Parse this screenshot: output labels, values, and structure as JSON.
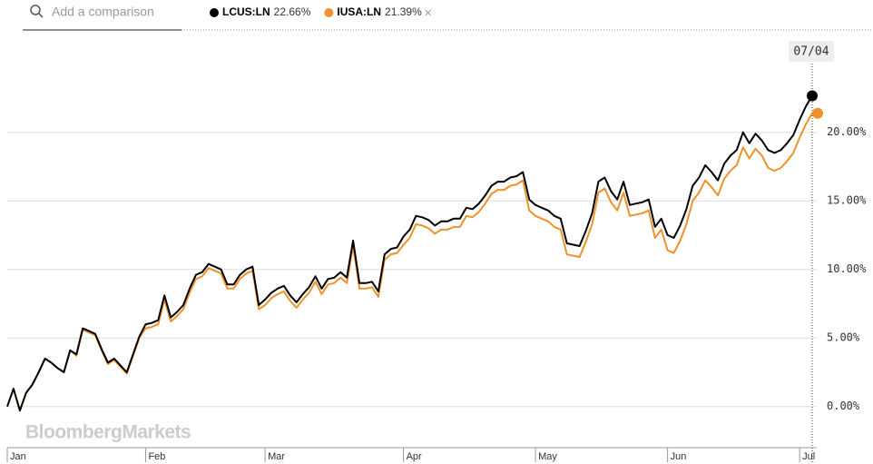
{
  "search_placeholder": "Add a comparison",
  "chart_data": {
    "type": "line",
    "watermark": "BloombergMarkets",
    "crosshair_label": "07/04",
    "categories": [
      "Jan",
      null,
      null,
      null,
      null,
      null,
      null,
      null,
      null,
      null,
      null,
      null,
      null,
      null,
      null,
      null,
      null,
      null,
      null,
      null,
      null,
      null,
      "Feb",
      null,
      null,
      null,
      null,
      null,
      null,
      null,
      null,
      null,
      null,
      null,
      null,
      null,
      null,
      null,
      null,
      null,
      null,
      "Mar",
      null,
      null,
      null,
      null,
      null,
      null,
      null,
      null,
      null,
      null,
      null,
      null,
      null,
      null,
      null,
      null,
      null,
      null,
      null,
      null,
      null,
      "Apr",
      null,
      null,
      null,
      null,
      null,
      null,
      null,
      null,
      null,
      null,
      null,
      null,
      null,
      null,
      null,
      null,
      null,
      null,
      null,
      null,
      "May",
      null,
      null,
      null,
      null,
      null,
      null,
      null,
      null,
      null,
      null,
      null,
      null,
      null,
      null,
      null,
      null,
      null,
      null,
      null,
      null,
      "Jun",
      null,
      null,
      null,
      null,
      null,
      null,
      null,
      null,
      null,
      null,
      null,
      null,
      null,
      null,
      null,
      null,
      null,
      null,
      null,
      null,
      "Jul",
      null,
      null
    ],
    "series": [
      {
        "name": "LCUS:LN",
        "color": "#000000",
        "last_label": "22.66%",
        "values": [
          0,
          1.3,
          -0.3,
          1.0,
          1.6,
          2.5,
          3.5,
          3.2,
          2.8,
          2.5,
          4.1,
          3.8,
          5.7,
          5.5,
          5.3,
          4.2,
          3.2,
          3.5,
          3.0,
          2.5,
          3.8,
          5.1,
          6.0,
          6.1,
          6.3,
          8.1,
          6.5,
          6.9,
          7.4,
          8.6,
          9.6,
          9.8,
          10.4,
          10.2,
          10.0,
          8.9,
          8.9,
          9.6,
          10.0,
          10.2,
          7.4,
          7.8,
          8.3,
          8.6,
          8.8,
          8.1,
          7.6,
          8.2,
          8.7,
          9.5,
          8.6,
          9.3,
          9.4,
          9.8,
          9.4,
          12.1,
          9.0,
          9.0,
          9.1,
          8.4,
          11.1,
          11.5,
          11.6,
          12.4,
          12.9,
          13.9,
          13.8,
          13.6,
          13.2,
          13.5,
          13.5,
          13.7,
          13.7,
          14.5,
          14.4,
          14.8,
          15.4,
          16.1,
          16.4,
          16.4,
          16.7,
          16.8,
          17.1,
          15.1,
          14.7,
          14.5,
          14.3,
          13.9,
          13.7,
          11.9,
          11.8,
          11.7,
          12.8,
          14.1,
          16.4,
          16.7,
          15.7,
          15.1,
          16.4,
          14.7,
          14.8,
          14.9,
          15.1,
          13.1,
          13.7,
          12.5,
          12.3,
          13.2,
          14.4,
          16.1,
          16.7,
          17.6,
          17.1,
          16.5,
          17.7,
          18.3,
          18.7,
          20.0,
          19.2,
          19.9,
          19.4,
          18.7,
          18.5,
          18.7,
          19.2,
          19.8,
          20.9,
          21.9,
          22.66
        ]
      },
      {
        "name": "IUSA:LN",
        "color": "#f0922b",
        "last_label": "21.39%",
        "values": [
          0,
          1.3,
          -0.3,
          1.0,
          1.6,
          2.5,
          3.5,
          3.2,
          2.8,
          2.5,
          4.1,
          3.7,
          5.6,
          5.4,
          5.2,
          4.1,
          3.1,
          3.4,
          2.9,
          2.4,
          3.7,
          5.0,
          5.7,
          5.8,
          6.0,
          7.8,
          6.2,
          6.6,
          7.1,
          8.3,
          9.3,
          9.5,
          10.1,
          9.9,
          9.7,
          8.6,
          8.6,
          9.3,
          9.7,
          9.9,
          7.1,
          7.4,
          7.9,
          8.2,
          8.4,
          7.7,
          7.2,
          7.8,
          8.3,
          9.1,
          8.2,
          8.9,
          9.0,
          9.4,
          9.0,
          11.7,
          8.6,
          8.6,
          8.7,
          8.0,
          10.7,
          11.1,
          11.2,
          11.8,
          12.3,
          13.3,
          13.2,
          13.0,
          12.6,
          12.9,
          12.9,
          13.1,
          13.1,
          13.9,
          13.8,
          14.2,
          14.8,
          15.5,
          15.8,
          15.8,
          16.1,
          16.2,
          16.5,
          14.3,
          13.9,
          13.7,
          13.5,
          13.1,
          12.9,
          11.1,
          11.0,
          10.9,
          12.0,
          13.3,
          15.6,
          15.9,
          14.9,
          14.3,
          15.6,
          13.9,
          14.0,
          14.1,
          14.3,
          12.3,
          12.9,
          11.4,
          11.2,
          12.1,
          13.3,
          15.0,
          15.6,
          16.5,
          16.0,
          15.4,
          16.6,
          17.2,
          17.6,
          18.9,
          18.1,
          18.8,
          18.3,
          17.4,
          17.2,
          17.4,
          17.9,
          18.5,
          19.6,
          20.6,
          21.39
        ]
      }
    ],
    "ylim": [
      -3,
      27
    ],
    "yticks": [
      {
        "value": 0,
        "label": "0.00%"
      },
      {
        "value": 5,
        "label": "5.00%"
      },
      {
        "value": 10,
        "label": "10.00%"
      },
      {
        "value": 15,
        "label": "15.00%"
      },
      {
        "value": 20,
        "label": "20.00%"
      }
    ],
    "grid": true
  }
}
